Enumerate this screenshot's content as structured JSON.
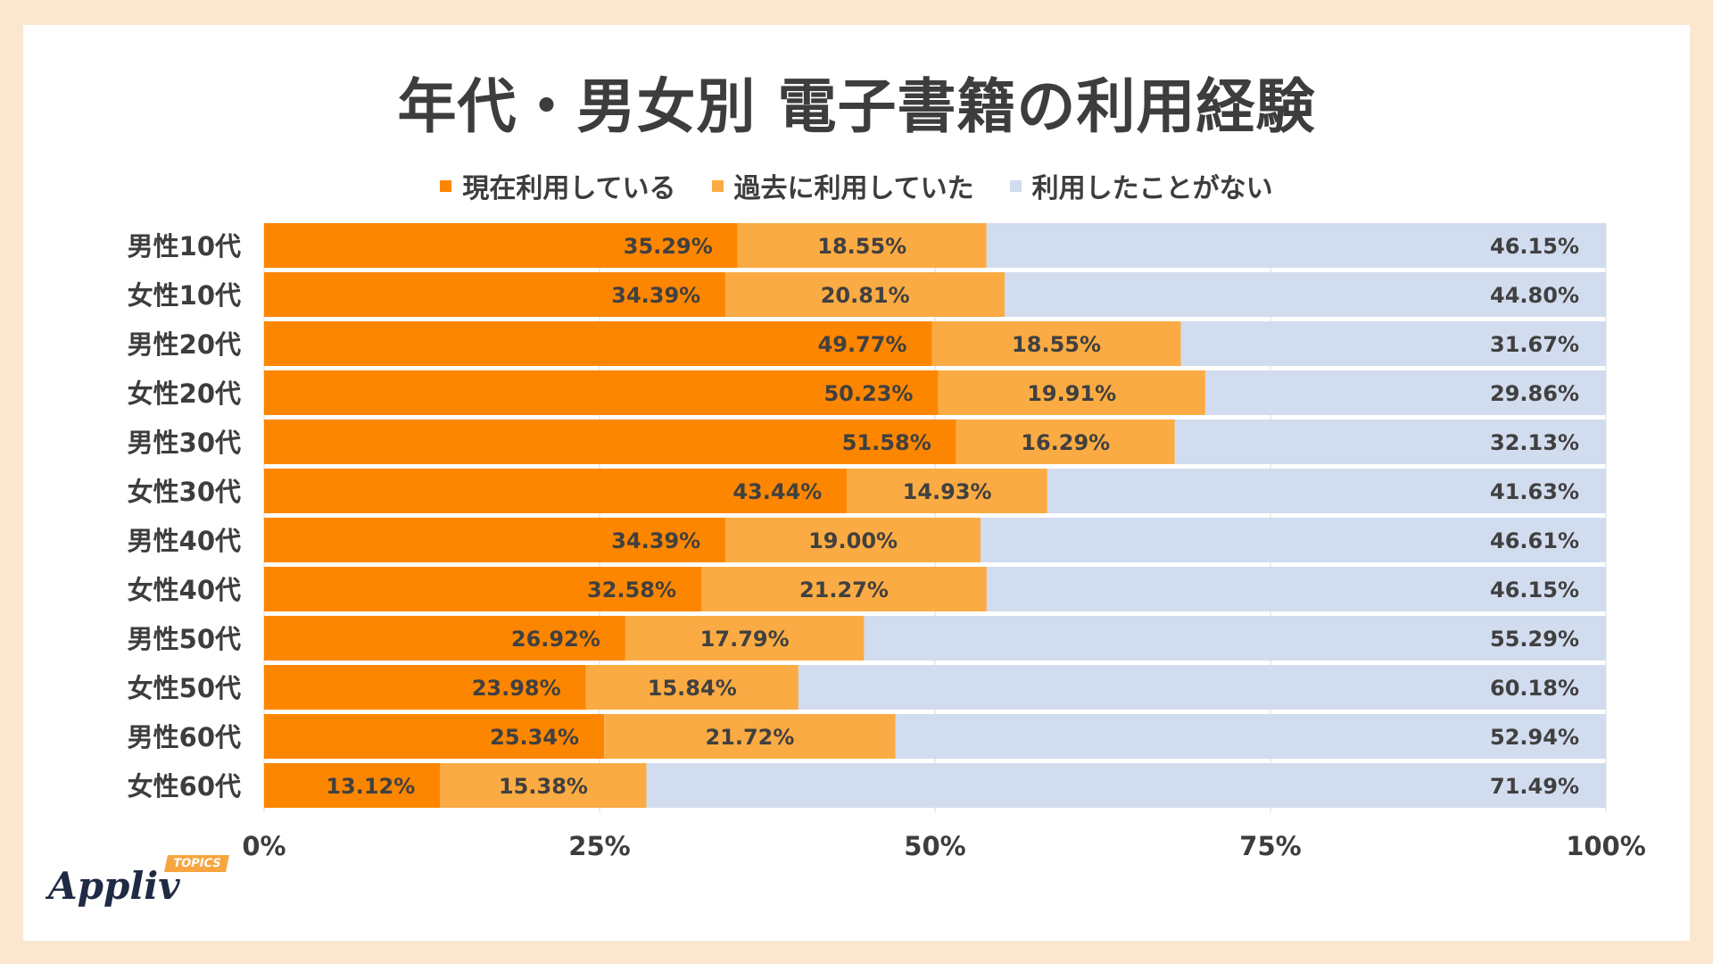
{
  "page": {
    "title": "年代・男女別 電子書籍の利用経験"
  },
  "colors": {
    "background": "#fbe7cf",
    "card": "#ffffff",
    "text": "#3d3d3d"
  },
  "logo": {
    "wordmark": "Appliv",
    "badge": "TOPICS"
  },
  "chart_data": {
    "type": "bar",
    "orientation": "horizontal",
    "stacked": true,
    "title": "年代・男女別 電子書籍の利用経験",
    "categories": [
      "男性10代",
      "女性10代",
      "男性20代",
      "女性20代",
      "男性30代",
      "女性30代",
      "男性40代",
      "女性40代",
      "男性50代",
      "女性50代",
      "男性60代",
      "女性60代"
    ],
    "series": [
      {
        "name": "現在利用している",
        "color": "#fd8600",
        "values": [
          35.29,
          34.39,
          49.77,
          50.23,
          51.58,
          43.44,
          34.39,
          32.58,
          26.92,
          23.98,
          25.34,
          13.12
        ]
      },
      {
        "name": "過去に利用していた",
        "color": "#fbab43",
        "values": [
          18.55,
          20.81,
          18.55,
          19.91,
          16.29,
          14.93,
          19.0,
          21.27,
          17.79,
          15.84,
          21.72,
          15.38
        ]
      },
      {
        "name": "利用したことがない",
        "color": "#d2dcef",
        "values": [
          46.15,
          44.8,
          31.67,
          29.86,
          32.13,
          41.63,
          46.61,
          46.15,
          55.29,
          60.18,
          52.94,
          71.49
        ]
      }
    ],
    "xlim": [
      0,
      100
    ],
    "xticks": [
      "0%",
      "25%",
      "50%",
      "75%",
      "100%"
    ],
    "grid": true,
    "legend": "top-center"
  }
}
